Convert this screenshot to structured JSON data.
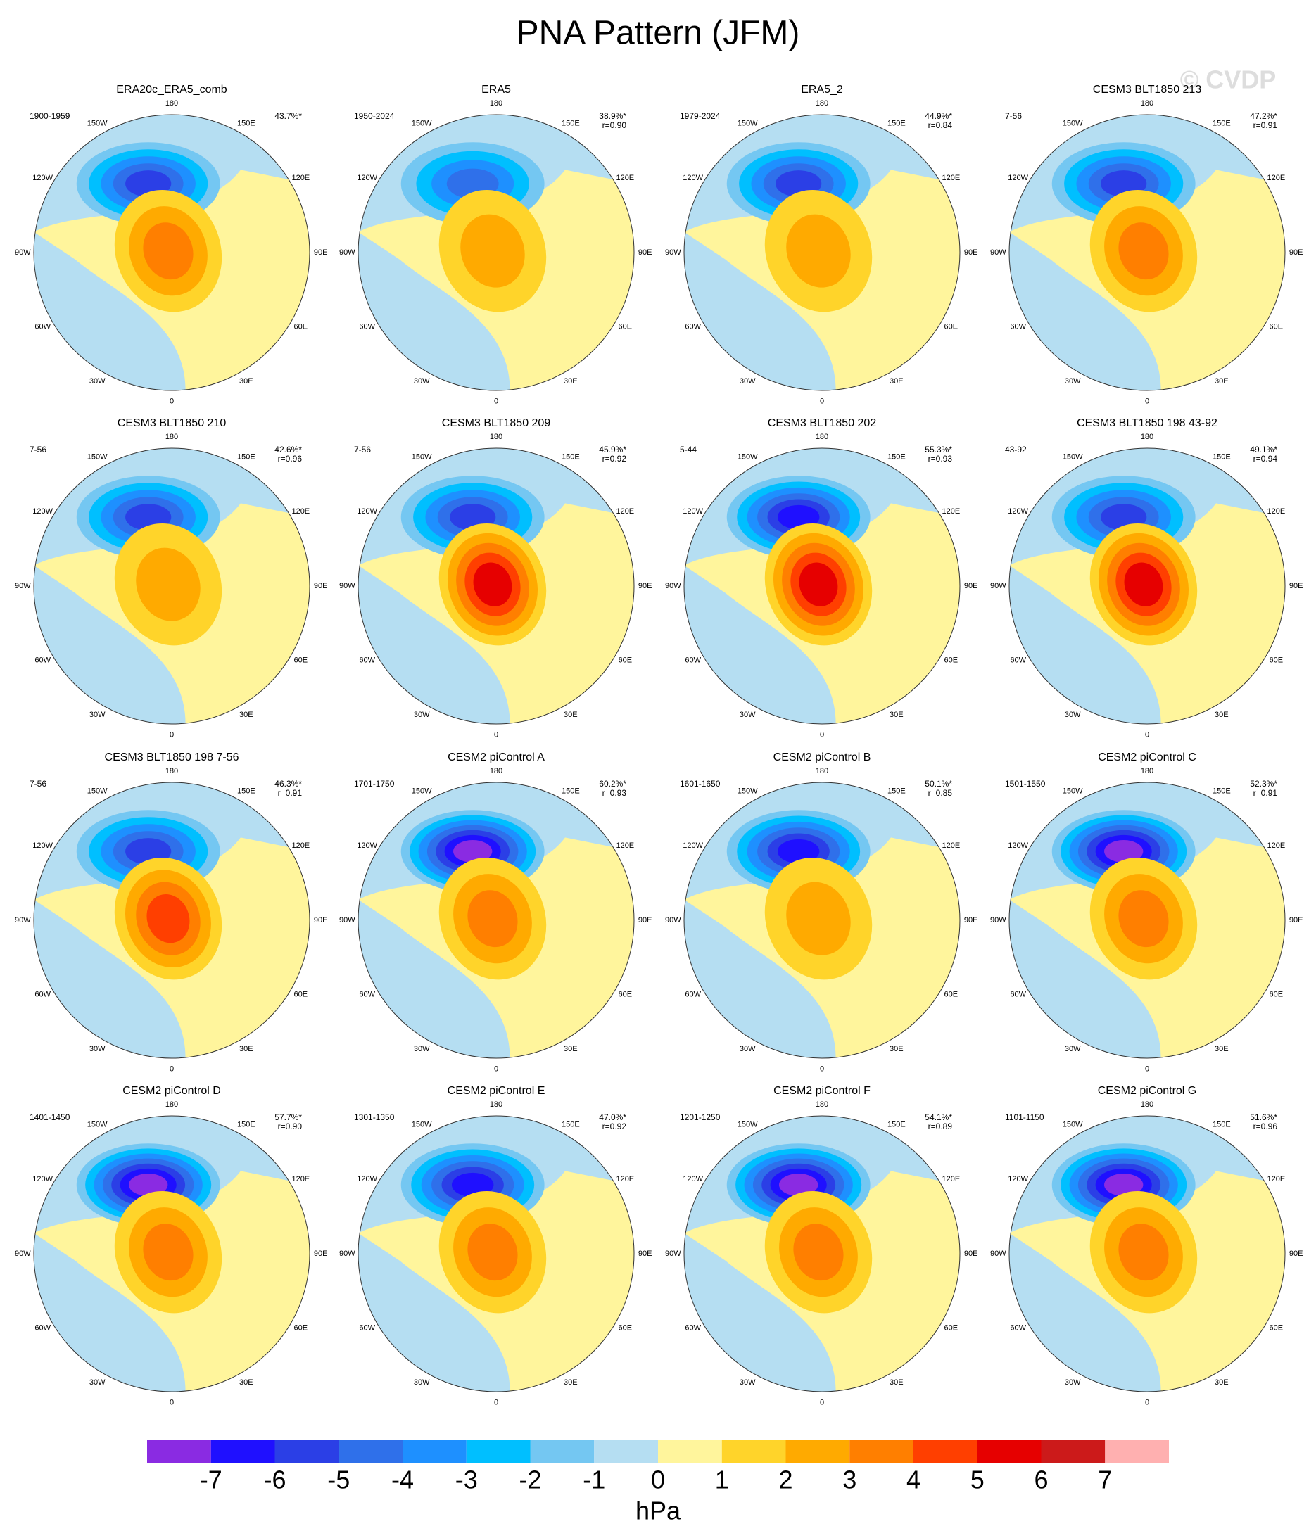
{
  "title": "PNA Pattern (JFM)",
  "watermark": "© CVDP",
  "lon_ticks": [
    180,
    {
      "value": 150,
      "label": "150E"
    },
    {
      "value": 120,
      "label": "120E"
    },
    {
      "value": 90,
      "label": "90E"
    },
    {
      "value": 60,
      "label": "60E"
    },
    {
      "value": 30,
      "label": "30E"
    },
    0,
    {
      "value": -30,
      "label": "30W"
    },
    {
      "value": -60,
      "label": "60W"
    },
    {
      "value": -90,
      "label": "90W"
    },
    {
      "value": -120,
      "label": "120W"
    },
    {
      "value": -150,
      "label": "150W"
    }
  ],
  "panels": [
    {
      "title": "ERA20c_ERA5_comb",
      "period": "1900-1959",
      "pct": "43.7%*",
      "min": -5,
      "max": 3
    },
    {
      "title": "ERA5",
      "period": "1950-2024",
      "pct": "38.9%*",
      "r": "r=0.90",
      "min": -4,
      "max": 2
    },
    {
      "title": "ERA5_2",
      "period": "1979-2024",
      "pct": "44.9%*",
      "r": "r=0.84",
      "min": -5,
      "max": 2
    },
    {
      "title": "CESM3 BLT1850 213",
      "period": "7-56",
      "pct": "47.2%*",
      "r": "r=0.91",
      "min": -5,
      "max": 3
    },
    {
      "title": "CESM3 BLT1850 210",
      "period": "7-56",
      "pct": "42.6%*",
      "r": "r=0.96",
      "min": -5,
      "max": 2
    },
    {
      "title": "CESM3 BLT1850 209",
      "period": "7-56",
      "pct": "45.9%*",
      "r": "r=0.92",
      "min": -5,
      "max": 5
    },
    {
      "title": "CESM3 BLT1850 202",
      "period": "5-44",
      "pct": "55.3%*",
      "r": "r=0.93",
      "min": -6,
      "max": 5
    },
    {
      "title": "CESM3 BLT1850 198 43-92",
      "period": "43-92",
      "pct": "49.1%*",
      "r": "r=0.94",
      "min": -5,
      "max": 5
    },
    {
      "title": "CESM3 BLT1850 198 7-56",
      "period": "7-56",
      "pct": "46.3%*",
      "r": "r=0.91",
      "min": -5,
      "max": 4
    },
    {
      "title": "CESM2 piControl A",
      "period": "1701-1750",
      "pct": "60.2%*",
      "r": "r=0.93",
      "min": -7,
      "max": 3
    },
    {
      "title": "CESM2 piControl B",
      "period": "1601-1650",
      "pct": "50.1%*",
      "r": "r=0.85",
      "min": -6,
      "max": 2
    },
    {
      "title": "CESM2 piControl C",
      "period": "1501-1550",
      "pct": "52.3%*",
      "r": "r=0.91",
      "min": -7,
      "max": 3
    },
    {
      "title": "CESM2 piControl D",
      "period": "1401-1450",
      "pct": "57.7%*",
      "r": "r=0.90",
      "min": -7,
      "max": 3
    },
    {
      "title": "CESM2 piControl E",
      "period": "1301-1350",
      "pct": "47.0%*",
      "r": "r=0.92",
      "min": -6,
      "max": 3
    },
    {
      "title": "CESM2 piControl F",
      "period": "1201-1250",
      "pct": "54.1%*",
      "r": "r=0.89",
      "min": -7,
      "max": 3
    },
    {
      "title": "CESM2 piControl G",
      "period": "1101-1150",
      "pct": "51.6%*",
      "r": "r=0.96",
      "min": -7,
      "max": 3
    }
  ],
  "colorbar": {
    "levels": [
      -7,
      -6,
      -5,
      -4,
      -3,
      -2,
      -1,
      0,
      1,
      2,
      3,
      4,
      5,
      6,
      7
    ],
    "colors": [
      "#8a2be2",
      "#1f10ff",
      "#2b3fe6",
      "#2f70ea",
      "#1e90ff",
      "#00bfff",
      "#74c7f2",
      "#b5def2",
      "#fff59c",
      "#ffd42a",
      "#ffaa00",
      "#ff7f00",
      "#ff3f00",
      "#e60000",
      "#cc1a1a",
      "#ffb0b0"
    ],
    "unit": "hPa"
  }
}
